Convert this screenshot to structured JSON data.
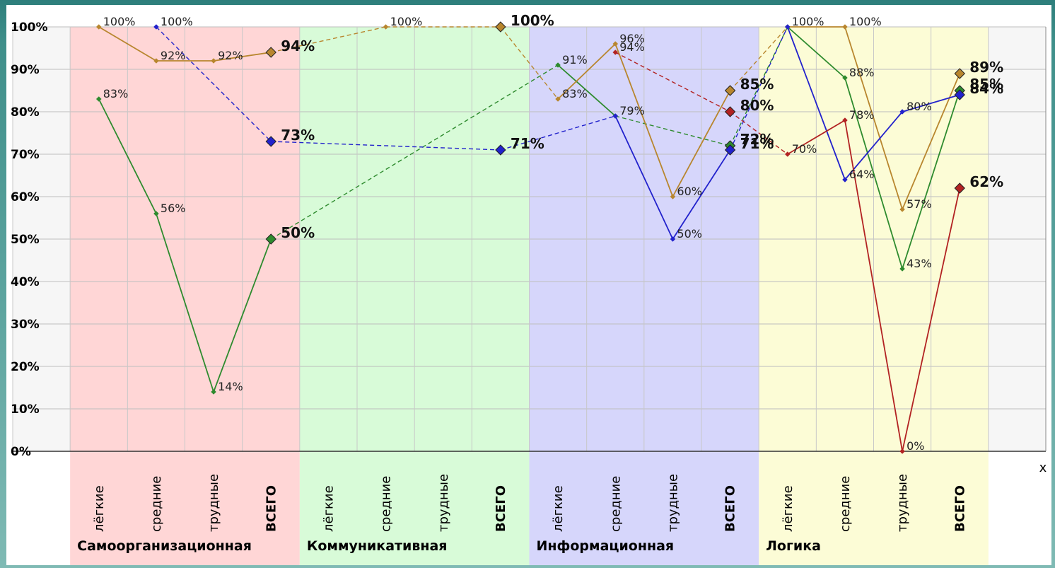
{
  "chart_data": {
    "type": "line",
    "title": "",
    "xlabel": "x",
    "ylabel": "",
    "ylim": [
      0,
      100
    ],
    "grid": true,
    "y_ticks": [
      "0%",
      "10%",
      "20%",
      "30%",
      "40%",
      "50%",
      "60%",
      "70%",
      "80%",
      "90%",
      "100%"
    ],
    "groups": [
      {
        "name": "Самоорганизационная",
        "color": "#ffd6d6",
        "categories": [
          "лёгкие",
          "средние",
          "трудные",
          "ВСЕГО"
        ]
      },
      {
        "name": "Коммуникативная",
        "color": "#d8fbd8",
        "categories": [
          "лёгкие",
          "средние",
          "трудные",
          "ВСЕГО"
        ]
      },
      {
        "name": "Информационная",
        "color": "#d6d6fb",
        "categories": [
          "лёгкие",
          "средние",
          "трудные",
          "ВСЕГО"
        ]
      },
      {
        "name": "Логика",
        "color": "#fcfcd6",
        "categories": [
          "лёгкие",
          "средние",
          "трудные",
          "ВСЕГО"
        ]
      }
    ],
    "series": [
      {
        "color": "#2e8b2e",
        "values": [
          83,
          56,
          14,
          50,
          null,
          null,
          null,
          null,
          91,
          79,
          null,
          72,
          100,
          88,
          43,
          85
        ],
        "labels": [
          "83%",
          "56%",
          "14%",
          "50%",
          "",
          "",
          "",
          "",
          "91%",
          "79%",
          "",
          "72%",
          "",
          "88%",
          "43%",
          "85%"
        ]
      },
      {
        "color": "#b8862e",
        "values": [
          100,
          92,
          92,
          94,
          null,
          100,
          null,
          100,
          83,
          96,
          60,
          85,
          100,
          100,
          57,
          89
        ],
        "labels": [
          "100%",
          "92%",
          "92%",
          "94%",
          "",
          "100%",
          "",
          "100%",
          "83%",
          "96%",
          "60%",
          "85%",
          "100%",
          "100%",
          "57%",
          "89%"
        ]
      },
      {
        "color": "#2222cc",
        "values": [
          null,
          100,
          null,
          73,
          null,
          null,
          null,
          71,
          null,
          79,
          50,
          71,
          100,
          64,
          80,
          84
        ],
        "labels": [
          "",
          "100%",
          "",
          "73%",
          "",
          "",
          "",
          "71%",
          "",
          "",
          "50%",
          "71%",
          "",
          "64%",
          "80%",
          "84%"
        ]
      },
      {
        "color": "#b22222",
        "values": [
          null,
          null,
          null,
          null,
          null,
          null,
          null,
          null,
          null,
          94,
          null,
          80,
          70,
          78,
          0,
          62
        ],
        "labels": [
          "",
          "",
          "",
          "",
          "",
          "",
          "",
          "",
          "",
          "94%",
          "",
          "80%",
          "70%",
          "78%",
          "0%",
          "62%"
        ]
      }
    ]
  }
}
